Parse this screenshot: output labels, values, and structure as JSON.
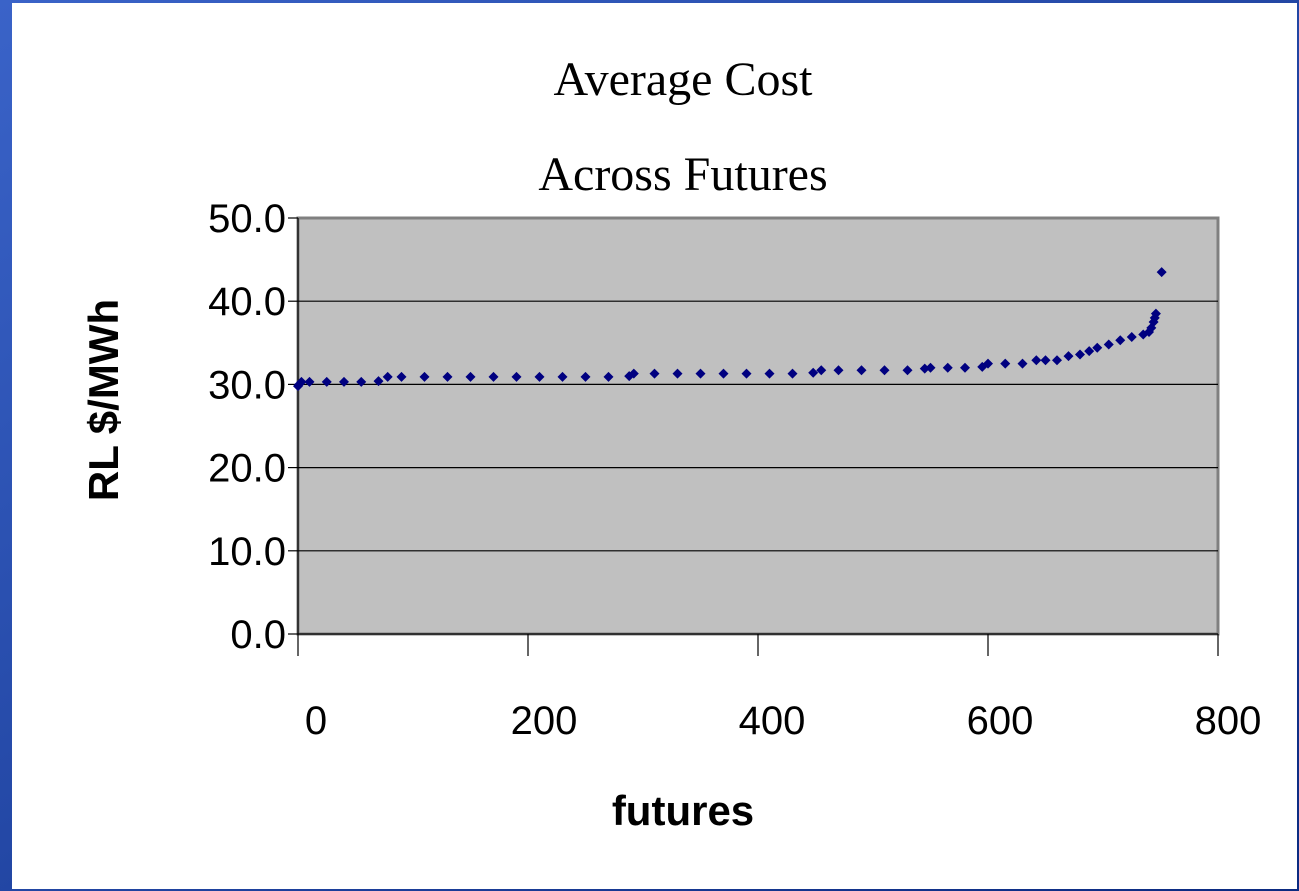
{
  "chart_data": {
    "type": "scatter",
    "title": [
      "Average Cost",
      "Across Futures"
    ],
    "x_label": "futures",
    "y_label": "RL $/MWh",
    "series": [
      {
        "color": "#000080",
        "x": [
          0,
          1,
          3,
          10,
          25,
          40,
          55,
          70,
          78,
          90,
          110,
          130,
          150,
          170,
          190,
          210,
          230,
          250,
          270,
          288,
          292,
          310,
          330,
          350,
          370,
          390,
          410,
          430,
          448,
          455,
          470,
          490,
          510,
          530,
          545,
          550,
          565,
          580,
          595,
          600,
          615,
          630,
          642,
          650,
          660,
          670,
          680,
          688,
          695,
          705,
          715,
          725,
          735,
          740,
          742,
          744,
          745,
          746,
          751
        ],
        "values": [
          29.8,
          30.0,
          30.3,
          30.3,
          30.3,
          30.3,
          30.3,
          30.4,
          30.9,
          30.9,
          30.9,
          30.9,
          30.9,
          30.9,
          30.9,
          30.9,
          30.9,
          30.9,
          30.9,
          31.0,
          31.3,
          31.3,
          31.3,
          31.3,
          31.3,
          31.3,
          31.3,
          31.3,
          31.4,
          31.7,
          31.7,
          31.7,
          31.7,
          31.7,
          31.9,
          32.0,
          32.0,
          32.0,
          32.1,
          32.5,
          32.5,
          32.5,
          32.9,
          32.9,
          32.9,
          33.4,
          33.6,
          34.0,
          34.4,
          34.8,
          35.3,
          35.7,
          36.0,
          36.3,
          36.8,
          37.5,
          38.0,
          38.5,
          43.5
        ]
      }
    ],
    "xlim": [
      0,
      800
    ],
    "xticks": [
      0,
      200,
      400,
      600,
      800
    ],
    "ylim": [
      0,
      50
    ],
    "yticks": [
      {
        "value": 0,
        "label": "0.0"
      },
      {
        "value": 10,
        "label": "10.0"
      },
      {
        "value": 20,
        "label": "20.0"
      },
      {
        "value": 30,
        "label": "30.0"
      },
      {
        "value": 40,
        "label": "40.0"
      },
      {
        "value": 50,
        "label": "50.0"
      }
    ],
    "grid": true
  }
}
